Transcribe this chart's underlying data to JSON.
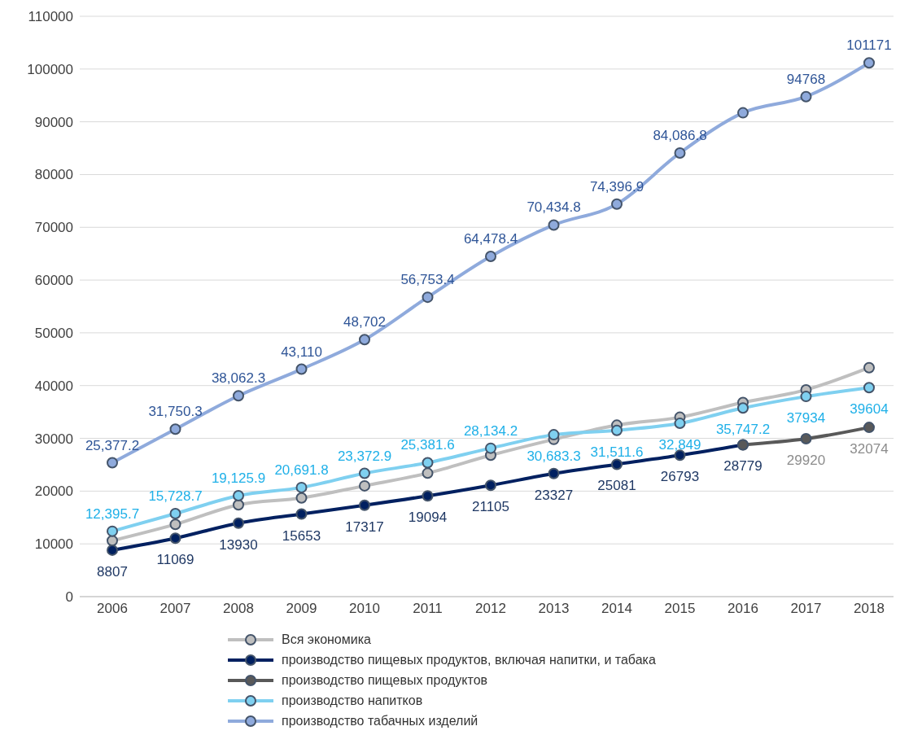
{
  "chart_data": {
    "type": "line",
    "categories": [
      "2006",
      "2007",
      "2008",
      "2009",
      "2010",
      "2011",
      "2012",
      "2013",
      "2014",
      "2015",
      "2016",
      "2017",
      "2018"
    ],
    "ylim": [
      0,
      110000
    ],
    "yticks": [
      0,
      10000,
      20000,
      30000,
      40000,
      50000,
      60000,
      70000,
      80000,
      90000,
      100000,
      110000
    ],
    "grid": "y",
    "legend": "bottom",
    "marker": "circle",
    "line_style": "solid",
    "series": [
      {
        "name": "Вся экономика",
        "color": "#bfbfbf",
        "values": [
          10600,
          13700,
          17400,
          18700,
          21000,
          23400,
          26800,
          29800,
          32500,
          34000,
          36800,
          39200,
          43400
        ]
      },
      {
        "name": "производство пищевых продуктов, включая напитки, и табака",
        "color": "#002060",
        "values": [
          8807,
          11069,
          13930,
          15653,
          17317,
          19094,
          21105,
          23327,
          25081,
          26793,
          28779,
          null,
          null
        ],
        "value_labels": [
          "8807",
          "11069",
          "13930",
          "15653",
          "17317",
          "19094",
          "21105",
          "23327",
          "25081",
          "26793",
          "28779",
          null,
          null
        ]
      },
      {
        "name": "производство пищевых продуктов",
        "color": "#595959",
        "values": [
          null,
          null,
          null,
          null,
          null,
          null,
          null,
          null,
          null,
          null,
          28779,
          29920,
          32074
        ],
        "value_labels": [
          null,
          null,
          null,
          null,
          null,
          null,
          null,
          null,
          null,
          null,
          null,
          "29920",
          "32074"
        ]
      },
      {
        "name": "производство напитков",
        "color": "#7fd0f0",
        "values": [
          12395.7,
          15728.7,
          19125.9,
          20691.8,
          23372.9,
          25381.6,
          28134.2,
          30683.3,
          31511.6,
          32849,
          35747.2,
          37934,
          39604
        ],
        "value_labels": [
          "12,395.7",
          "15,728.7",
          "19,125.9",
          "20,691.8",
          "23,372.9",
          "25,381.6",
          "28,134.2",
          "30,683.3",
          "31,511.6",
          "32,849",
          "35,747.2",
          "37934",
          "39604"
        ]
      },
      {
        "name": "производство табачных изделий",
        "color": "#8faadc",
        "values": [
          25377.2,
          31750.3,
          38062.3,
          43110,
          48702,
          56753.4,
          64478.4,
          70434.8,
          74396.9,
          84086.8,
          91700,
          94768,
          101171
        ],
        "value_labels": [
          "25,377.2",
          "31,750.3",
          "38,062.3",
          "43,110",
          "48,702",
          "56,753.4",
          "64,478.4",
          "70,434.8",
          "74,396.9",
          "84,086.8",
          null,
          "94768",
          "101171"
        ]
      }
    ]
  }
}
